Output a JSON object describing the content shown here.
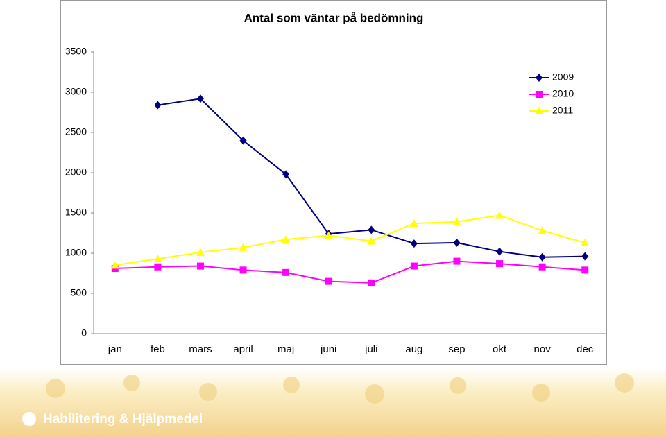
{
  "chart_data": {
    "type": "line",
    "title": "Antal som väntar på bedömning",
    "categories": [
      "jan",
      "feb",
      "mars",
      "april",
      "maj",
      "juni",
      "juli",
      "aug",
      "sep",
      "okt",
      "nov",
      "dec"
    ],
    "series": [
      {
        "name": "2009",
        "color": "#000080",
        "marker": "diamond",
        "values": [
          null,
          2840,
          2920,
          2400,
          1980,
          1240,
          1290,
          1120,
          1130,
          1020,
          950,
          960
        ]
      },
      {
        "name": "2010",
        "color": "#ff00ff",
        "marker": "square",
        "values": [
          810,
          830,
          840,
          790,
          760,
          650,
          630,
          840,
          900,
          870,
          830,
          790
        ]
      },
      {
        "name": "2011",
        "color": "#ffff00",
        "marker": "triangle",
        "values": [
          850,
          930,
          1010,
          1070,
          1170,
          1220,
          1150,
          1370,
          1390,
          1470,
          1280,
          1130
        ]
      }
    ],
    "ylim": [
      0,
      3500
    ],
    "yticks": [
      0,
      500,
      1000,
      1500,
      2000,
      2500,
      3000,
      3500
    ],
    "grid": false,
    "legend": "top-right"
  },
  "footer": {
    "logo": "Habilitering & Hjälpmedel"
  }
}
